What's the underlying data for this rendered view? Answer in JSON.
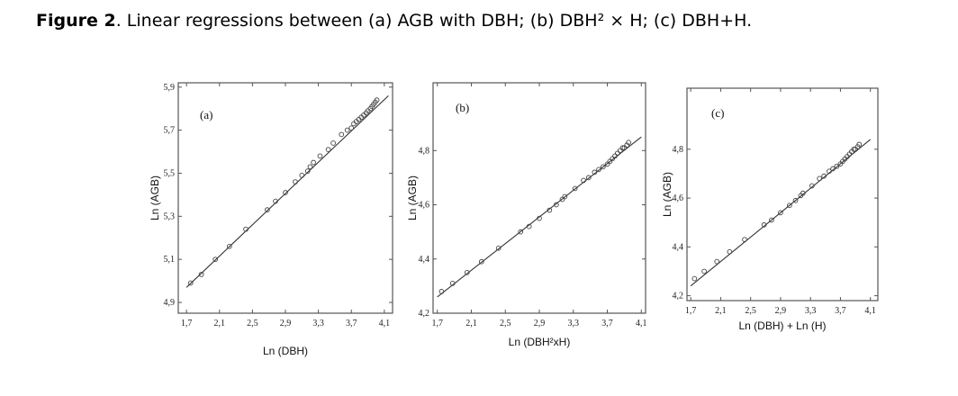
{
  "caption": {
    "figure_label": "Figure 2",
    "text": ". Linear regressions between (a) AGB with DBH; (b) DBH² × H; (c) DBH+H."
  },
  "colors": {
    "axis": "#555555",
    "line": "#333333",
    "marker": "#444444"
  },
  "chart_data": [
    {
      "type": "scatter",
      "panel_label": "(a)",
      "xlabel": "Ln (DBH)",
      "ylabel": "Ln (AGB)",
      "xlim": [
        1.6,
        4.2
      ],
      "ylim": [
        4.85,
        5.92
      ],
      "xticks": [
        1.7,
        2.1,
        2.5,
        2.9,
        3.3,
        3.7,
        4.1
      ],
      "xtick_labels": [
        "1,7",
        "2,1",
        "2,5",
        "2,9",
        "3,3",
        "3,7",
        "4,1"
      ],
      "yticks": [
        4.9,
        5.1,
        5.3,
        5.5,
        5.7,
        5.9
      ],
      "ytick_labels": [
        "4,9",
        "5,1",
        "5,3",
        "5,5",
        "5,7",
        "5,9"
      ],
      "regression": {
        "x": [
          1.7,
          4.15
        ],
        "y": [
          4.97,
          5.86
        ]
      },
      "points": {
        "x": [
          1.75,
          1.88,
          2.05,
          2.22,
          2.42,
          2.68,
          2.78,
          2.9,
          3.02,
          3.1,
          3.17,
          3.2,
          3.24,
          3.32,
          3.42,
          3.48,
          3.58,
          3.65,
          3.7,
          3.73,
          3.76,
          3.79,
          3.82,
          3.85,
          3.88,
          3.9,
          3.93,
          3.95,
          3.97,
          3.99,
          4.01
        ],
        "y": [
          4.99,
          5.03,
          5.1,
          5.16,
          5.24,
          5.33,
          5.37,
          5.41,
          5.46,
          5.49,
          5.51,
          5.53,
          5.55,
          5.58,
          5.61,
          5.64,
          5.68,
          5.7,
          5.71,
          5.73,
          5.74,
          5.75,
          5.76,
          5.77,
          5.78,
          5.79,
          5.8,
          5.81,
          5.82,
          5.83,
          5.84
        ]
      }
    },
    {
      "type": "scatter",
      "panel_label": "(b)",
      "xlabel": "Ln (DBH²xH)",
      "ylabel": "Ln (AGB)",
      "xlim": [
        1.65,
        4.15
      ],
      "ylim": [
        4.2,
        5.05
      ],
      "xticks": [
        1.7,
        2.1,
        2.5,
        2.9,
        3.3,
        3.7,
        4.1
      ],
      "xtick_labels": [
        "1,7",
        "2,1",
        "2,5",
        "2,9",
        "3,3",
        "3,7",
        "4,1"
      ],
      "yticks": [
        4.2,
        4.4,
        4.6,
        4.8
      ],
      "ytick_labels": [
        "4,2",
        "4,4",
        "4,6",
        "4,8"
      ],
      "regression": {
        "x": [
          1.7,
          4.1
        ],
        "y": [
          4.26,
          4.85
        ]
      },
      "points": {
        "x": [
          1.75,
          1.88,
          2.05,
          2.22,
          2.42,
          2.68,
          2.78,
          2.9,
          3.02,
          3.1,
          3.17,
          3.2,
          3.32,
          3.42,
          3.48,
          3.55,
          3.6,
          3.65,
          3.7,
          3.73,
          3.76,
          3.79,
          3.82,
          3.85,
          3.88,
          3.9,
          3.93,
          3.95
        ],
        "y": [
          4.28,
          4.31,
          4.35,
          4.39,
          4.44,
          4.5,
          4.52,
          4.55,
          4.58,
          4.6,
          4.62,
          4.63,
          4.66,
          4.69,
          4.7,
          4.72,
          4.73,
          4.74,
          4.75,
          4.76,
          4.77,
          4.78,
          4.79,
          4.8,
          4.81,
          4.81,
          4.82,
          4.83
        ]
      }
    },
    {
      "type": "scatter",
      "panel_label": "(c)",
      "xlabel": "Ln (DBH) + Ln (H)",
      "ylabel": "Ln (AGB)",
      "xlim": [
        1.65,
        4.2
      ],
      "ylim": [
        4.18,
        5.05
      ],
      "xticks": [
        1.7,
        2.1,
        2.5,
        2.9,
        3.3,
        3.7,
        4.1
      ],
      "xtick_labels": [
        "1,7",
        "2,1",
        "2,5",
        "2,9",
        "3,3",
        "3,7",
        "4,1"
      ],
      "yticks": [
        4.2,
        4.4,
        4.6,
        4.8
      ],
      "ytick_labels": [
        "4,2",
        "4,4",
        "4,6",
        "4,8"
      ],
      "regression": {
        "x": [
          1.7,
          4.1
        ],
        "y": [
          4.24,
          4.84
        ]
      },
      "points": {
        "x": [
          1.75,
          1.88,
          2.05,
          2.22,
          2.42,
          2.68,
          2.78,
          2.9,
          3.02,
          3.1,
          3.17,
          3.2,
          3.32,
          3.42,
          3.48,
          3.55,
          3.6,
          3.65,
          3.7,
          3.73,
          3.76,
          3.79,
          3.82,
          3.85,
          3.88,
          3.9,
          3.93,
          3.95
        ],
        "y": [
          4.27,
          4.3,
          4.34,
          4.38,
          4.43,
          4.49,
          4.51,
          4.54,
          4.57,
          4.59,
          4.61,
          4.62,
          4.65,
          4.68,
          4.69,
          4.71,
          4.72,
          4.73,
          4.74,
          4.75,
          4.76,
          4.77,
          4.78,
          4.79,
          4.8,
          4.8,
          4.81,
          4.82
        ]
      }
    }
  ]
}
